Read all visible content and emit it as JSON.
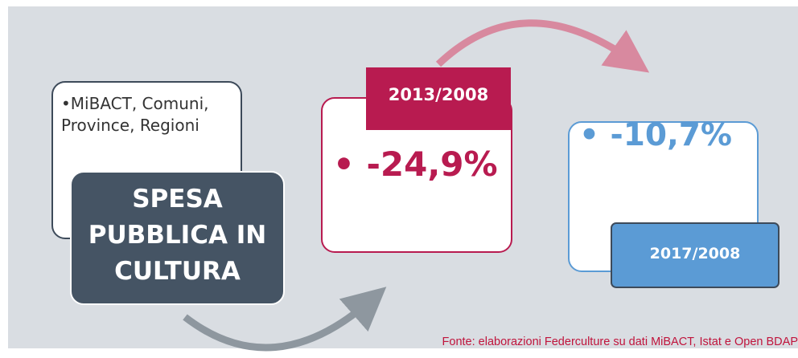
{
  "sources_box": {
    "text": "MiBACT, Comuni, Province, Regioni"
  },
  "main_box": {
    "text": "SPESA PUBBLICA IN CULTURA"
  },
  "period1": {
    "label": "2013/2008",
    "value": "-24,9%"
  },
  "period2": {
    "label": "2017/2008",
    "value": "-10,7%"
  },
  "footer": {
    "source": "Fonte: elaborazioni Federculture su dati MiBACT, Istat e Open BDAP"
  }
}
